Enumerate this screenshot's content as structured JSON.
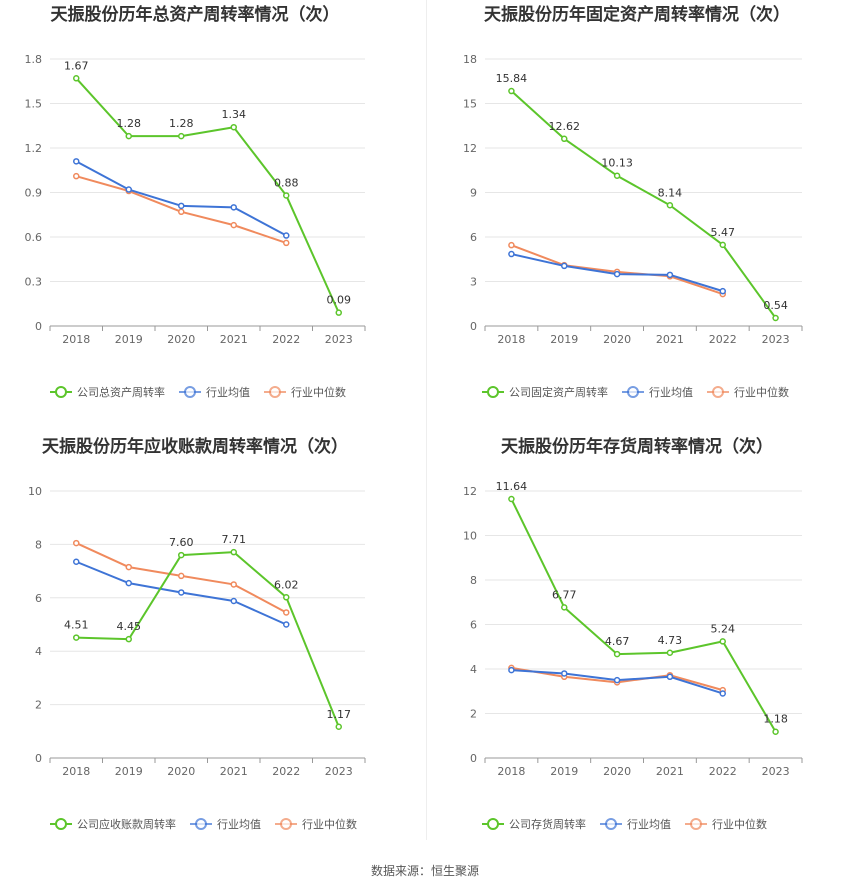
{
  "colors": {
    "company": "#5cc52b",
    "industry_avg": "#3e74d6",
    "industry_median": "#f08a5d",
    "grid": "#e6e6e6",
    "axis": "#999999"
  },
  "legend_labels": {
    "avg": "行业均值",
    "median": "行业中位数"
  },
  "source_text": "数据来源：恒生聚源",
  "chart_data": [
    {
      "type": "line",
      "title": "天振股份历年总资产周转率情况（次）",
      "categories": [
        "2018",
        "2019",
        "2020",
        "2021",
        "2022",
        "2023"
      ],
      "ylim": [
        0,
        1.8
      ],
      "yticks": [
        "0",
        "0.3",
        "0.6",
        "0.9",
        "1.2",
        "1.5",
        "1.8"
      ],
      "grid": true,
      "legend_position": "bottom",
      "series": [
        {
          "name": "公司总资产周转率",
          "role": "company",
          "values": [
            1.67,
            1.28,
            1.28,
            1.34,
            0.88,
            0.09
          ],
          "labels": [
            "1.67",
            "1.28",
            "1.28",
            "1.34",
            "0.88",
            "0.09"
          ]
        },
        {
          "name": "行业均值",
          "role": "avg",
          "values": [
            1.11,
            0.92,
            0.81,
            0.8,
            0.61,
            null
          ]
        },
        {
          "name": "行业中位数",
          "role": "median",
          "values": [
            1.01,
            0.91,
            0.77,
            0.68,
            0.56,
            null
          ]
        }
      ]
    },
    {
      "type": "line",
      "title": "天振股份历年固定资产周转率情况（次）",
      "categories": [
        "2018",
        "2019",
        "2020",
        "2021",
        "2022",
        "2023"
      ],
      "ylim": [
        0,
        18
      ],
      "yticks": [
        "0",
        "3",
        "6",
        "9",
        "12",
        "15",
        "18"
      ],
      "grid": true,
      "legend_position": "bottom",
      "series": [
        {
          "name": "公司固定资产周转率",
          "role": "company",
          "values": [
            15.84,
            12.62,
            10.13,
            8.14,
            5.47,
            0.54
          ],
          "labels": [
            "15.84",
            "12.62",
            "10.13",
            "8.14",
            "5.47",
            "0.54"
          ]
        },
        {
          "name": "行业均值",
          "role": "avg",
          "values": [
            4.85,
            4.05,
            3.5,
            3.45,
            2.35,
            null
          ]
        },
        {
          "name": "行业中位数",
          "role": "median",
          "values": [
            5.45,
            4.1,
            3.65,
            3.35,
            2.15,
            null
          ]
        }
      ]
    },
    {
      "type": "line",
      "title": "天振股份历年应收账款周转率情况（次）",
      "categories": [
        "2018",
        "2019",
        "2020",
        "2021",
        "2022",
        "2023"
      ],
      "ylim": [
        0,
        10
      ],
      "yticks": [
        "0",
        "2",
        "4",
        "6",
        "8",
        "10"
      ],
      "grid": true,
      "legend_position": "bottom",
      "series": [
        {
          "name": "公司应收账款周转率",
          "role": "company",
          "values": [
            4.51,
            4.45,
            7.6,
            7.71,
            6.02,
            1.17
          ],
          "labels": [
            "4.51",
            "4.45",
            "7.60",
            "7.71",
            "6.02",
            "1.17"
          ]
        },
        {
          "name": "行业均值",
          "role": "avg",
          "values": [
            7.35,
            6.55,
            6.2,
            5.88,
            5.0,
            null
          ]
        },
        {
          "name": "行业中位数",
          "role": "median",
          "values": [
            8.05,
            7.15,
            6.82,
            6.5,
            5.45,
            null
          ]
        }
      ]
    },
    {
      "type": "line",
      "title": "天振股份历年存货周转率情况（次）",
      "categories": [
        "2018",
        "2019",
        "2020",
        "2021",
        "2022",
        "2023"
      ],
      "ylim": [
        0,
        12
      ],
      "yticks": [
        "0",
        "2",
        "4",
        "6",
        "8",
        "10",
        "12"
      ],
      "grid": true,
      "legend_position": "bottom",
      "series": [
        {
          "name": "公司存货周转率",
          "role": "company",
          "values": [
            11.64,
            6.77,
            4.67,
            4.73,
            5.24,
            1.18
          ],
          "labels": [
            "11.64",
            "6.77",
            "4.67",
            "4.73",
            "5.24",
            "1.18"
          ]
        },
        {
          "name": "行业均值",
          "role": "avg",
          "values": [
            3.95,
            3.8,
            3.5,
            3.65,
            2.9,
            null
          ]
        },
        {
          "name": "行业中位数",
          "role": "median",
          "values": [
            4.05,
            3.65,
            3.4,
            3.72,
            3.05,
            null
          ]
        }
      ]
    }
  ]
}
